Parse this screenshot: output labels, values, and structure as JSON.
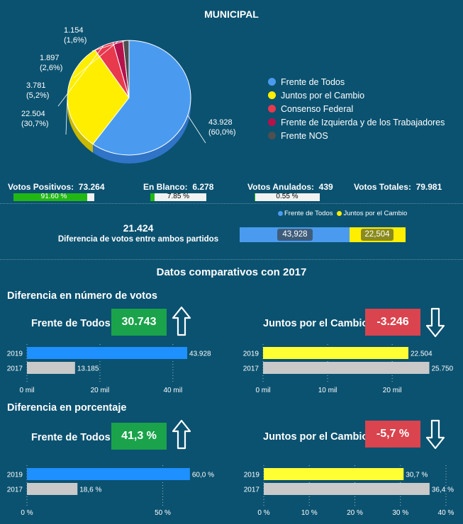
{
  "header": {
    "title": "MUNICIPAL"
  },
  "pie": {
    "labels": [
      {
        "votes": "43.928",
        "pct": "(60,0%)"
      },
      {
        "votes": "22.504",
        "pct": "(30,7%)"
      },
      {
        "votes": "3.781",
        "pct": "(5,2%)"
      },
      {
        "votes": "1.897",
        "pct": "(2,6%)"
      },
      {
        "votes": "1.154",
        "pct": "(1,6%)"
      }
    ],
    "legend": [
      {
        "name": "Frente de Todos",
        "color": "#4a9bf0"
      },
      {
        "name": "Juntos por el Cambio",
        "color": "#ffee00"
      },
      {
        "name": "Consenso Federal",
        "color": "#e8394d"
      },
      {
        "name": "Frente de Izquierda y de los Trabajadores",
        "color": "#b5124c"
      },
      {
        "name": "Frente NOS",
        "color": "#4f4f4f"
      }
    ]
  },
  "stats": {
    "positivos": {
      "label": "Votos Positivos:",
      "value": "73.264",
      "bar": "91.60 %",
      "fraction": 0.916
    },
    "blanco": {
      "label": "En Blanco:",
      "value": "6.278",
      "bar": "7.85 %",
      "fraction": 0.0785
    },
    "anulados": {
      "label": "Votos Anulados:",
      "value": "439",
      "bar": "0.55 %",
      "fraction": 0.0055
    },
    "totales": {
      "label": "Votos Totales:",
      "value": "79.981"
    }
  },
  "difference": {
    "value": "21.424",
    "label": "Diferencia de votos entre ambos partidos",
    "legend": [
      "Frente de Todos",
      "Juntos por el Cambio"
    ],
    "bar_a": "43,928",
    "bar_b": "22,504"
  },
  "comparison": {
    "title": "Datos comparativos con 2017",
    "votes_section": "Diferencia en número de votos",
    "pct_section": "Diferencia en porcentaje",
    "fdt": {
      "name": "Frente de Todos",
      "diff_votes": "30.743",
      "diff_pct": "41,3 %"
    },
    "jxc": {
      "name": "Juntos por el Cambio",
      "diff_votes": "-3.246",
      "diff_pct": "-5,7 %"
    }
  },
  "colors": {
    "fdt": "#1e90ff",
    "jxc": "#ffff33",
    "y2017": "#c9c9c9",
    "up": "#1aa34a",
    "down": "#d9444e"
  },
  "chart_data": [
    {
      "type": "pie",
      "title": "MUNICIPAL",
      "labels": [
        "Frente de Todos",
        "Juntos por el Cambio",
        "Consenso Federal",
        "Frente de Izquierda y de los Trabajadores",
        "Frente NOS"
      ],
      "values": [
        43928,
        22504,
        3781,
        1897,
        1154
      ],
      "percent": [
        60.0,
        30.7,
        5.2,
        2.6,
        1.6
      ]
    },
    {
      "type": "bar",
      "orientation": "horizontal",
      "party": "Frente de Todos",
      "metric": "votes",
      "categories": [
        "2019",
        "2017"
      ],
      "values": [
        43928,
        13185
      ],
      "value_labels": [
        "43.928",
        "13.185"
      ],
      "xlim": [
        0,
        48000
      ],
      "ticks": [
        0,
        20000,
        40000
      ],
      "tick_labels": [
        "0 mil",
        "20 mil",
        "40 mil"
      ]
    },
    {
      "type": "bar",
      "orientation": "horizontal",
      "party": "Juntos por el Cambio",
      "metric": "votes",
      "categories": [
        "2019",
        "2017"
      ],
      "values": [
        22504,
        25750
      ],
      "value_labels": [
        "22.504",
        "25.750"
      ],
      "xlim": [
        0,
        28000
      ],
      "ticks": [
        0,
        10000,
        20000
      ],
      "tick_labels": [
        "0 mil",
        "10 mil",
        "20 mil"
      ]
    },
    {
      "type": "bar",
      "orientation": "horizontal",
      "party": "Frente de Todos",
      "metric": "percent",
      "categories": [
        "2019",
        "2017"
      ],
      "values": [
        60.0,
        18.6
      ],
      "value_labels": [
        "60,0 %",
        "18,6 %"
      ],
      "xlim": [
        0,
        65
      ],
      "ticks": [
        0,
        50
      ],
      "tick_labels": [
        "0 %",
        "50 %"
      ]
    },
    {
      "type": "bar",
      "orientation": "horizontal",
      "party": "Juntos por el Cambio",
      "metric": "percent",
      "categories": [
        "2019",
        "2017"
      ],
      "values": [
        30.7,
        36.4
      ],
      "value_labels": [
        "30,7 %",
        "36,4 %"
      ],
      "xlim": [
        0,
        40
      ],
      "ticks": [
        0,
        10,
        20,
        30,
        40
      ],
      "tick_labels": [
        "0 %",
        "10 %",
        "20 %",
        "30 %",
        "40 %"
      ]
    }
  ]
}
